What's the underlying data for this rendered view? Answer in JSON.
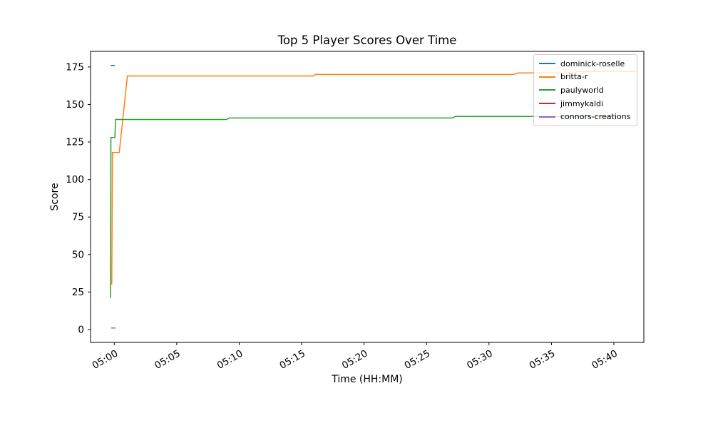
{
  "chart_data": {
    "type": "line",
    "title": "Top 5 Player Scores Over Time",
    "xlabel": "Time (HH:MM)",
    "ylabel": "Score",
    "x_tick_labels": [
      "05:00",
      "05:05",
      "05:10",
      "05:15",
      "05:20",
      "05:25",
      "05:30",
      "05:35",
      "05:40"
    ],
    "x_tick_minutes": [
      0,
      5,
      10,
      15,
      20,
      25,
      30,
      35,
      40
    ],
    "y_ticks": [
      0,
      25,
      50,
      75,
      100,
      125,
      150,
      175
    ],
    "xlim_minutes": [
      -1.9,
      42.4
    ],
    "ylim": [
      -8.6,
      185.4
    ],
    "grid": false,
    "legend_position": "upper right",
    "background": "#ffffff",
    "spine_color": "#000000",
    "series": [
      {
        "name": "dominick-roselle",
        "color": "#1f77b4",
        "points": [
          [
            -0.3,
            176
          ],
          [
            0.05,
            176
          ]
        ]
      },
      {
        "name": "britta-r",
        "color": "#ff7f0e",
        "points": [
          [
            -0.2,
            30
          ],
          [
            -0.15,
            118
          ],
          [
            0.4,
            118
          ],
          [
            1.05,
            169
          ],
          [
            15.9,
            169
          ],
          [
            16.1,
            170
          ],
          [
            32.0,
            170
          ],
          [
            32.3,
            171
          ],
          [
            36.8,
            171
          ],
          [
            37.1,
            172
          ],
          [
            41.8,
            172
          ]
        ]
      },
      {
        "name": "paulyworld",
        "color": "#2ca02c",
        "points": [
          [
            -0.3,
            21
          ],
          [
            -0.27,
            128
          ],
          [
            0.05,
            128
          ],
          [
            0.1,
            140
          ],
          [
            9.0,
            140
          ],
          [
            9.2,
            141
          ],
          [
            27.1,
            141
          ],
          [
            27.3,
            142
          ],
          [
            40.3,
            142
          ]
        ]
      },
      {
        "name": "jimmykaldi",
        "color": "#d62728",
        "points": [],
        "visible_line": false
      },
      {
        "name": "connors-creations",
        "color": "#9467bd",
        "points": [
          [
            -0.25,
            1
          ],
          [
            0.1,
            1
          ]
        ]
      }
    ]
  }
}
